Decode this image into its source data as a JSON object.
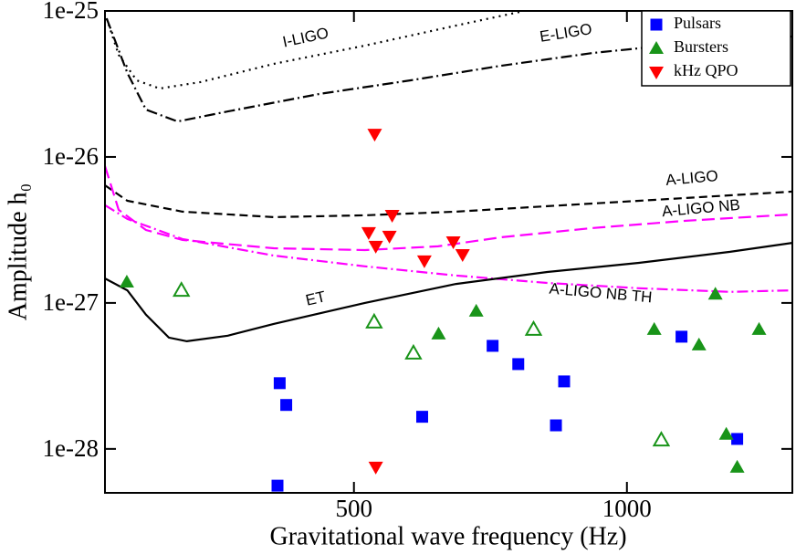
{
  "chart_data": {
    "type": "scatter",
    "xlabel": "Gravitational wave frequency (Hz)",
    "ylabel": "Amplitude h₀",
    "xlim": [
      44,
      1303
    ],
    "ylim": [
      5e-29,
      1e-25
    ],
    "xticks": [
      500,
      1000
    ],
    "yticks": [
      1e-25,
      1e-26,
      1e-27,
      1e-28
    ],
    "log_y": true,
    "legend": "upper right",
    "series": [
      {
        "name": "Pulsars",
        "color": "#0000ff",
        "marker": "square",
        "x": [
          364,
          376,
          360,
          625,
          754,
          801,
          885,
          870,
          1100,
          1202
        ],
        "values": [
          2.82e-28,
          2e-28,
          5.6e-29,
          1.66e-28,
          5.08e-28,
          3.81e-28,
          2.9e-28,
          1.45e-28,
          5.87e-28,
          1.17e-28
        ]
      },
      {
        "name": "Bursters",
        "color": "#199419",
        "marker": "triangle-up",
        "x": [
          84,
          655,
          724,
          1050,
          1132,
          1162,
          1182,
          1202,
          1242,
          184,
          537,
          609,
          829,
          1063
        ],
        "values": [
          1.39e-27,
          6.13e-28,
          8.79e-28,
          6.59e-28,
          5.16e-28,
          1.15e-27,
          1.26e-28,
          7.5e-29,
          6.59e-28,
          1.22e-27,
          7.4e-28,
          4.53e-28,
          6.59e-28,
          1.15e-28
        ],
        "open": [
          false,
          false,
          false,
          false,
          false,
          false,
          false,
          false,
          false,
          true,
          true,
          true,
          true,
          true
        ]
      },
      {
        "name": "kHz QPO",
        "color": "#ff0000",
        "marker": "triangle-down",
        "x": [
          538,
          570,
          527,
          540,
          565,
          629,
          682,
          699,
          540
        ],
        "values": [
          1.43e-26,
          3.98e-27,
          3.03e-27,
          2.44e-27,
          2.86e-27,
          1.94e-27,
          2.62e-27,
          2.14e-27,
          7.5e-29
        ]
      }
    ],
    "curves": [
      {
        "name": "I-LIGO",
        "color": "#000000",
        "dash": "dotted",
        "x": [
          47,
          69,
          102,
          144,
          219,
          353,
          520,
          687,
          804
        ],
        "values": [
          8.9e-26,
          5e-26,
          3.35e-26,
          2.94e-26,
          3.26e-26,
          4.34e-26,
          5.79e-26,
          7.94e-26,
          9.86e-26
        ]
      },
      {
        "name": "E-LIGO",
        "color": "#000000",
        "dash": "dashdot",
        "x": [
          47,
          85,
          119,
          177,
          269,
          436,
          604,
          771,
          938,
          1105,
          1303
        ],
        "values": [
          8.9e-26,
          3.76e-26,
          2.11e-26,
          1.75e-26,
          2.05e-26,
          2.7e-26,
          3.35e-26,
          4.22e-26,
          5.16e-26,
          5.96e-26,
          6.68e-26
        ]
      },
      {
        "name": "A-LIGO",
        "color": "#000000",
        "dash": "dashed",
        "x": [
          44,
          85,
          186,
          353,
          520,
          687,
          854,
          1022,
          1189,
          1303
        ],
        "values": [
          6.4e-27,
          5.01e-27,
          4.22e-27,
          3.87e-27,
          3.98e-27,
          4.22e-27,
          4.6e-27,
          5.01e-27,
          5.46e-27,
          5.79e-27
        ]
      },
      {
        "name": "A-LIGO NB",
        "color": "#ff00ff",
        "dash": "longdash",
        "x": [
          44,
          69,
          119,
          186,
          353,
          520,
          654,
          771,
          938,
          1105,
          1303
        ],
        "values": [
          8.66e-27,
          4.34e-27,
          3.16e-27,
          2.7e-27,
          2.37e-27,
          2.3e-27,
          2.44e-27,
          2.82e-27,
          3.26e-27,
          3.65e-27,
          4.04e-27
        ]
      },
      {
        "name": "A-LIGO NB TH",
        "color": "#ff00ff",
        "dash": "dashdot",
        "x": [
          44,
          85,
          186,
          353,
          520,
          687,
          854,
          1022,
          1189,
          1303
        ],
        "values": [
          4.67e-27,
          3.76e-27,
          2.74e-27,
          2.11e-27,
          1.78e-27,
          1.54e-27,
          1.37e-27,
          1.26e-27,
          1.19e-27,
          1.22e-27
        ]
      },
      {
        "name": "ET",
        "color": "#000000",
        "dash": "solid",
        "x": [
          44,
          85,
          119,
          161,
          194,
          269,
          353,
          520,
          687,
          854,
          1022,
          1189,
          1303
        ],
        "values": [
          1.47e-27,
          1.22e-27,
          8.3e-28,
          5.79e-28,
          5.46e-28,
          5.96e-28,
          7.18e-28,
          1e-27,
          1.35e-27,
          1.63e-27,
          1.88e-27,
          2.24e-27,
          2.58e-27
        ]
      }
    ]
  }
}
